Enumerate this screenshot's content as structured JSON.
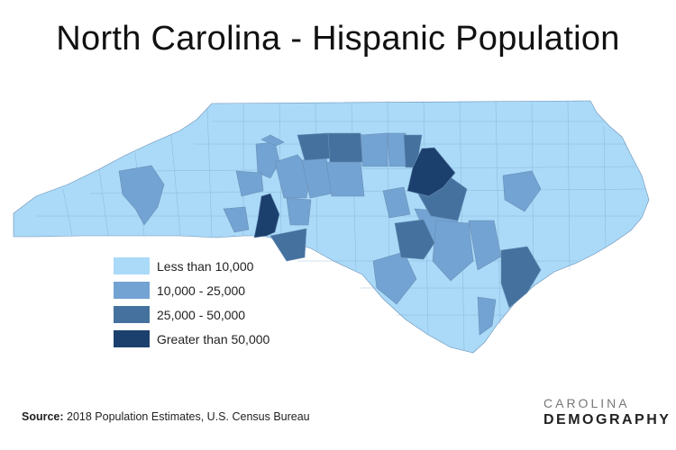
{
  "title": "North Carolina - Hispanic Population",
  "legend": [
    {
      "label": "Less than 10,000",
      "color": "#aadaf8"
    },
    {
      "label": "10,000 - 25,000",
      "color": "#72a3d3"
    },
    {
      "label": "25,000 - 50,000",
      "color": "#45719f"
    },
    {
      "label": "Greater than 50,000",
      "color": "#1c406e"
    }
  ],
  "source": {
    "label": "Source:",
    "text": "2018 Population Estimates, U.S. Census Bureau"
  },
  "logo": {
    "line1": "CAROLINA",
    "line2": "DEMOGRAPHY"
  }
}
